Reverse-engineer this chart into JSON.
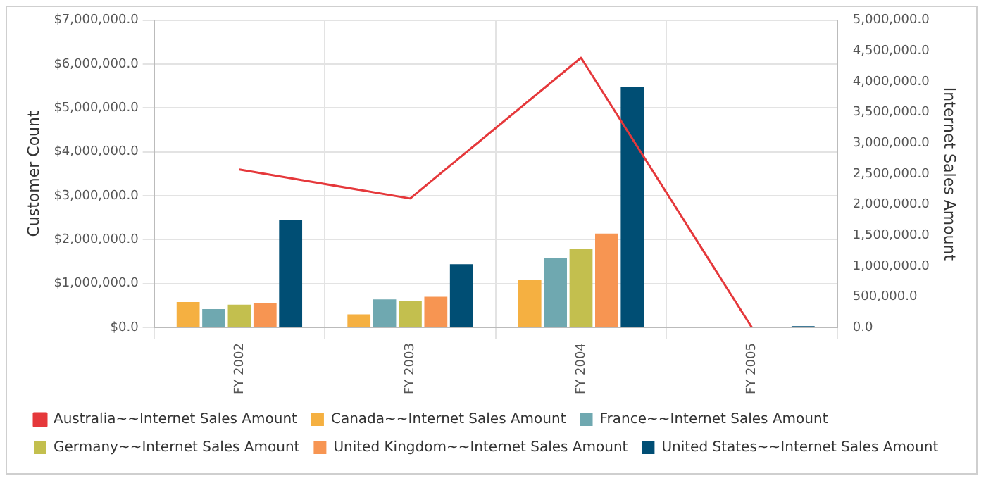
{
  "chart_data": {
    "type": "bar",
    "categories": [
      "FY 2002",
      "FY 2003",
      "FY 2004",
      "FY 2005"
    ],
    "ylabel": "Customer Count",
    "y2label": "Internet Sales Amount",
    "series": [
      {
        "name": "Australia~~Internet Sales Amount",
        "type": "line",
        "axis": "y2",
        "color": "#e5383b",
        "values": [
          2570000,
          2100000,
          4390000,
          0
        ]
      },
      {
        "name": "Canada~~Internet Sales Amount",
        "color": "#f5b041",
        "values": [
          580000,
          300000,
          1090000,
          null
        ]
      },
      {
        "name": "France~~Internet Sales Amount",
        "color": "#6fa8b0",
        "values": [
          420000,
          640000,
          1590000,
          null
        ]
      },
      {
        "name": "Germany~~Internet Sales Amount",
        "color": "#c3bf4e",
        "values": [
          520000,
          600000,
          1790000,
          null
        ]
      },
      {
        "name": "United Kingdom~~Internet Sales Amount",
        "color": "#f79552",
        "values": [
          550000,
          700000,
          2140000,
          null
        ]
      },
      {
        "name": "United States~~Internet Sales Amount",
        "color": "#004e74",
        "values": [
          2450000,
          1440000,
          5490000,
          30000
        ]
      }
    ],
    "ylim": [
      0,
      7000000
    ],
    "yticks": [
      {
        "value": 0,
        "label": "$0.0"
      },
      {
        "value": 1000000,
        "label": "$1,000,000.0"
      },
      {
        "value": 2000000,
        "label": "$2,000,000.0"
      },
      {
        "value": 3000000,
        "label": "$3,000,000.0"
      },
      {
        "value": 4000000,
        "label": "$4,000,000.0"
      },
      {
        "value": 5000000,
        "label": "$5,000,000.0"
      },
      {
        "value": 6000000,
        "label": "$6,000,000.0"
      },
      {
        "value": 7000000,
        "label": "$7,000,000.0"
      }
    ],
    "y2lim": [
      0,
      5000000
    ],
    "y2ticks": [
      {
        "value": 0,
        "label": "0.0"
      },
      {
        "value": 500000,
        "label": "500,000.0"
      },
      {
        "value": 1000000,
        "label": "1,000,000.0"
      },
      {
        "value": 1500000,
        "label": "1,500,000.0"
      },
      {
        "value": 2000000,
        "label": "2,000,000.0"
      },
      {
        "value": 2500000,
        "label": "2,500,000.0"
      },
      {
        "value": 3000000,
        "label": "3,000,000.0"
      },
      {
        "value": 3500000,
        "label": "3,500,000.0"
      },
      {
        "value": 4000000,
        "label": "4,000,000.0"
      },
      {
        "value": 4500000,
        "label": "4,500,000.0"
      },
      {
        "value": 5000000,
        "label": "5,000,000.0"
      }
    ],
    "grid": true,
    "legend": "bottom",
    "marker": "none",
    "line_style": "solid"
  }
}
